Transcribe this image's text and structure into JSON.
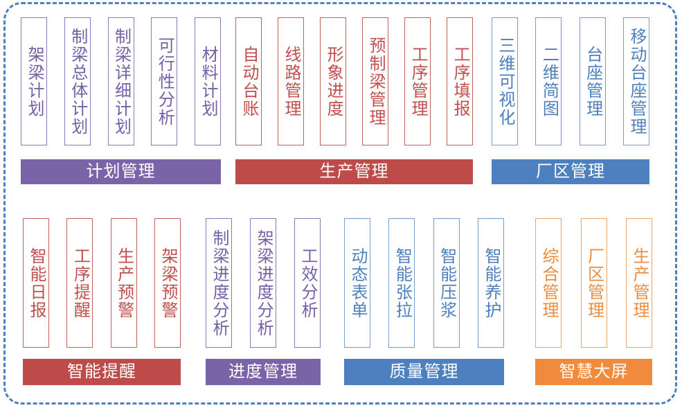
{
  "frame_color": "#4E7FBE",
  "themes": {
    "purple": {
      "banner": "#7B63A8",
      "box_border": "#8A78B4",
      "text": "#7461A6"
    },
    "red": {
      "banner": "#BC4B49",
      "box_border": "#C4615E",
      "text": "#C0504D"
    },
    "blue": {
      "banner": "#4E80BF",
      "box_border": "#7A9CCB",
      "text": "#4E80BF"
    },
    "orange": {
      "banner": "#F08A3D",
      "box_border": "#EBA266",
      "text": "#ED8C3F"
    }
  },
  "groups": [
    {
      "id": "plan",
      "row": 1,
      "theme": "purple",
      "label": "计划管理",
      "modules": [
        "架梁计划",
        "制梁总体计划",
        "制梁详细计划",
        "可行性分析",
        "材料计划"
      ]
    },
    {
      "id": "production",
      "row": 1,
      "theme": "red",
      "label": "生产管理",
      "modules": [
        "自动台账",
        "线路管理",
        "形象进度",
        "预制梁管理",
        "工序管理",
        "工序填报"
      ]
    },
    {
      "id": "factory",
      "row": 1,
      "theme": "blue",
      "label": "厂区管理",
      "modules": [
        "三维可视化",
        "二维简图",
        "台座管理",
        "移动台座管理"
      ]
    },
    {
      "id": "reminder",
      "row": 2,
      "theme": "red",
      "label": "智能提醒",
      "modules": [
        "智能日报",
        "工序提醒",
        "生产预警",
        "架梁预警"
      ]
    },
    {
      "id": "progress",
      "row": 2,
      "theme": "purple",
      "label": "进度管理",
      "modules": [
        "制梁进度分析",
        "架梁进度分析",
        "工效分析"
      ]
    },
    {
      "id": "quality",
      "row": 2,
      "theme": "blue",
      "label": "质量管理",
      "modules": [
        "动态表单",
        "智能张拉",
        "智能压浆",
        "智能养护"
      ]
    },
    {
      "id": "screen",
      "row": 2,
      "theme": "orange",
      "label": "智慧大屏",
      "modules": [
        "综合管理",
        "厂区管理",
        "生产管理"
      ]
    }
  ]
}
